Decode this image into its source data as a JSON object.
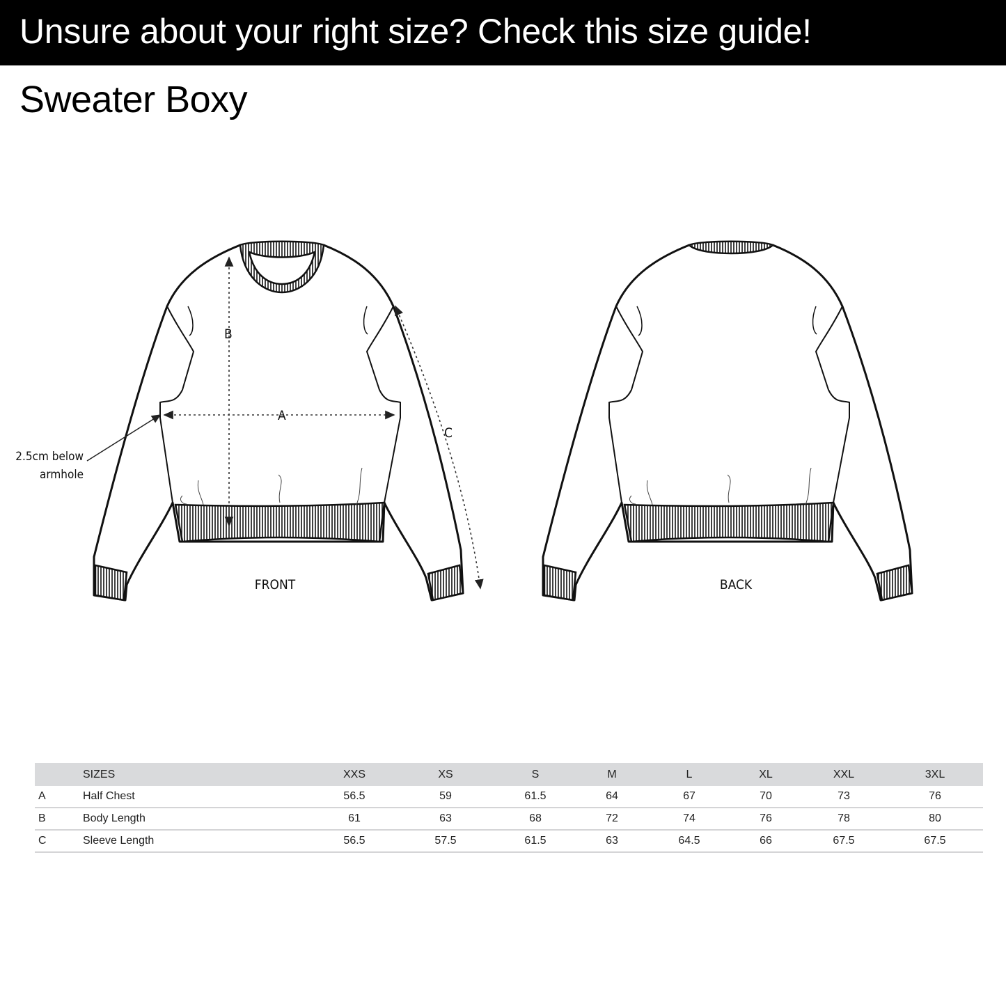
{
  "banner": {
    "text": "Unsure about your right size? Check this size guide!"
  },
  "product": {
    "title": "Sweater Boxy"
  },
  "diagram": {
    "front_label": "FRONT",
    "back_label": "BACK",
    "measure_a": "A",
    "measure_b": "B",
    "measure_c": "C",
    "note_line1": "2.5cm below",
    "note_line2": "armhole"
  },
  "table": {
    "header_label": "SIZES",
    "sizes": [
      "XXS",
      "XS",
      "S",
      "M",
      "L",
      "XL",
      "XXL",
      "3XL"
    ],
    "rows": [
      {
        "key": "A",
        "label": "Half Chest",
        "values": [
          "56.5",
          "59",
          "61.5",
          "64",
          "67",
          "70",
          "73",
          "76"
        ]
      },
      {
        "key": "B",
        "label": "Body Length",
        "values": [
          "61",
          "63",
          "68",
          "72",
          "74",
          "76",
          "78",
          "80"
        ]
      },
      {
        "key": "C",
        "label": "Sleeve Length",
        "values": [
          "56.5",
          "57.5",
          "61.5",
          "63",
          "64.5",
          "66",
          "67.5",
          "67.5"
        ]
      }
    ],
    "header_bg": "#d9dadc"
  }
}
